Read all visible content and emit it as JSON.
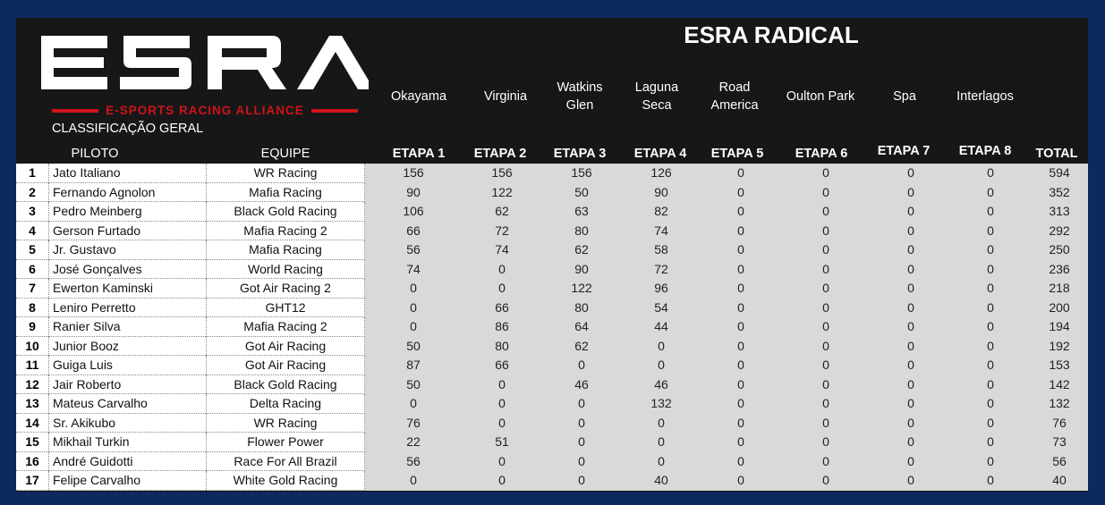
{
  "logo": {
    "main": "ESRA",
    "sub": "E-SPORTS RACING ALLIANCE"
  },
  "title": "ESRA RADICAL",
  "section_label": "CLASSIFICAÇÃO GERAL",
  "columns": {
    "pilot": "PILOTO",
    "team": "EQUIPE",
    "total": "TOTAL",
    "stages": [
      {
        "track": "Okayama",
        "stage": "ETAPA 1"
      },
      {
        "track": "Virginia",
        "stage": "ETAPA 2"
      },
      {
        "track": "Watkins Glen",
        "stage": "ETAPA 3"
      },
      {
        "track": "Laguna Seca",
        "stage": "ETAPA 4"
      },
      {
        "track": "Road America",
        "stage": "ETAPA 5"
      },
      {
        "track": "Oulton Park",
        "stage": "ETAPA 6"
      },
      {
        "track": "Spa",
        "stage": "ETAPA 7"
      },
      {
        "track": "Interlagos",
        "stage": "ETAPA 8"
      }
    ]
  },
  "rows": [
    {
      "pos": "1",
      "pilot": "Jato Italiano",
      "team": "WR Racing",
      "scores": [
        "156",
        "156",
        "156",
        "126",
        "0",
        "0",
        "0",
        "0"
      ],
      "total": "594"
    },
    {
      "pos": "2",
      "pilot": "Fernando Agnolon",
      "team": "Mafia Racing",
      "scores": [
        "90",
        "122",
        "50",
        "90",
        "0",
        "0",
        "0",
        "0"
      ],
      "total": "352"
    },
    {
      "pos": "3",
      "pilot": "Pedro Meinberg",
      "team": "Black Gold Racing",
      "scores": [
        "106",
        "62",
        "63",
        "82",
        "0",
        "0",
        "0",
        "0"
      ],
      "total": "313"
    },
    {
      "pos": "4",
      "pilot": "Gerson Furtado",
      "team": "Mafia Racing 2",
      "scores": [
        "66",
        "72",
        "80",
        "74",
        "0",
        "0",
        "0",
        "0"
      ],
      "total": "292"
    },
    {
      "pos": "5",
      "pilot": "Jr. Gustavo",
      "team": "Mafia Racing",
      "scores": [
        "56",
        "74",
        "62",
        "58",
        "0",
        "0",
        "0",
        "0"
      ],
      "total": "250"
    },
    {
      "pos": "6",
      "pilot": "José Gonçalves",
      "team": "World Racing",
      "scores": [
        "74",
        "0",
        "90",
        "72",
        "0",
        "0",
        "0",
        "0"
      ],
      "total": "236"
    },
    {
      "pos": "7",
      "pilot": "Ewerton Kaminski",
      "team": "Got Air Racing 2",
      "scores": [
        "0",
        "0",
        "122",
        "96",
        "0",
        "0",
        "0",
        "0"
      ],
      "total": "218"
    },
    {
      "pos": "8",
      "pilot": "Leniro Perretto",
      "team": "GHT12",
      "scores": [
        "0",
        "66",
        "80",
        "54",
        "0",
        "0",
        "0",
        "0"
      ],
      "total": "200"
    },
    {
      "pos": "9",
      "pilot": "Ranier Silva",
      "team": "Mafia Racing 2",
      "scores": [
        "0",
        "86",
        "64",
        "44",
        "0",
        "0",
        "0",
        "0"
      ],
      "total": "194"
    },
    {
      "pos": "10",
      "pilot": "Junior Booz",
      "team": "Got Air Racing",
      "scores": [
        "50",
        "80",
        "62",
        "0",
        "0",
        "0",
        "0",
        "0"
      ],
      "total": "192"
    },
    {
      "pos": "11",
      "pilot": "Guiga Luis",
      "team": "Got Air Racing",
      "scores": [
        "87",
        "66",
        "0",
        "0",
        "0",
        "0",
        "0",
        "0"
      ],
      "total": "153"
    },
    {
      "pos": "12",
      "pilot": "Jair Roberto",
      "team": "Black Gold Racing",
      "scores": [
        "50",
        "0",
        "46",
        "46",
        "0",
        "0",
        "0",
        "0"
      ],
      "total": "142"
    },
    {
      "pos": "13",
      "pilot": "Mateus Carvalho",
      "team": "Delta Racing",
      "scores": [
        "0",
        "0",
        "0",
        "132",
        "0",
        "0",
        "0",
        "0"
      ],
      "total": "132"
    },
    {
      "pos": "14",
      "pilot": "Sr. Akikubo",
      "team": "WR Racing",
      "scores": [
        "76",
        "0",
        "0",
        "0",
        "0",
        "0",
        "0",
        "0"
      ],
      "total": "76"
    },
    {
      "pos": "15",
      "pilot": "Mikhail Turkin",
      "team": "Flower Power",
      "scores": [
        "22",
        "51",
        "0",
        "0",
        "0",
        "0",
        "0",
        "0"
      ],
      "total": "73"
    },
    {
      "pos": "16",
      "pilot": "André Guidotti",
      "team": "Race For All Brazil",
      "scores": [
        "56",
        "0",
        "0",
        "0",
        "0",
        "0",
        "0",
        "0"
      ],
      "total": "56"
    },
    {
      "pos": "17",
      "pilot": "Felipe Carvalho",
      "team": "White Gold Racing",
      "scores": [
        "0",
        "0",
        "0",
        "40",
        "0",
        "0",
        "0",
        "0"
      ],
      "total": "40"
    }
  ],
  "colors": {
    "background": "#0d2a5e",
    "panel": "#171717",
    "logo_red": "#d0131b",
    "cell_gray": "#d9d9d9"
  }
}
